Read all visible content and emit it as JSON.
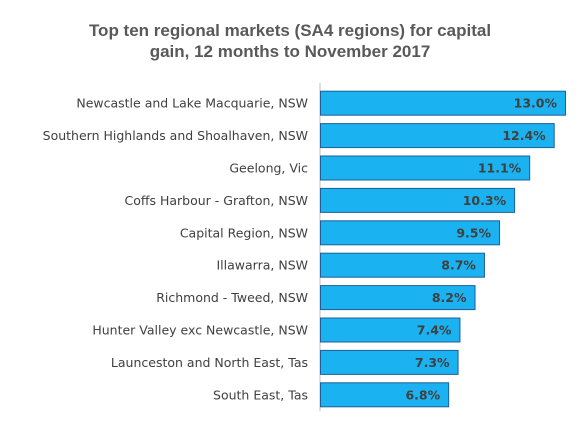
{
  "chart_data": {
    "type": "bar",
    "orientation": "horizontal",
    "title": "Top ten regional markets (SA4 regions) for capital gain, 12 months to November 2017",
    "title_lines": [
      "Top ten regional markets (SA4 regions) for capital",
      "gain, 12 months to November 2017"
    ],
    "categories": [
      "Newcastle and Lake Macquarie, NSW",
      "Southern Highlands and Shoalhaven, NSW",
      "Geelong, Vic",
      "Coffs Harbour - Grafton, NSW",
      "Capital Region, NSW",
      "Illawarra, NSW",
      "Richmond - Tweed, NSW",
      "Hunter Valley exc Newcastle, NSW",
      "Launceston and North East, Tas",
      "South East, Tas"
    ],
    "values": [
      13.0,
      12.4,
      11.1,
      10.3,
      9.5,
      8.7,
      8.2,
      7.4,
      7.3,
      6.8
    ],
    "data_labels": [
      "13.0%",
      "12.4%",
      "11.1%",
      "10.3%",
      "9.5%",
      "8.7%",
      "8.2%",
      "7.4%",
      "7.3%",
      "6.8%"
    ],
    "unit": "%",
    "xlim": [
      0,
      13.0
    ],
    "grid": false,
    "legend": "none",
    "colors": {
      "bar_fill": "#1AB2F0",
      "bar_stroke": "#1F5F99",
      "axis_line": "#BFBFBF",
      "title": "#595959",
      "text": "#404040"
    }
  }
}
